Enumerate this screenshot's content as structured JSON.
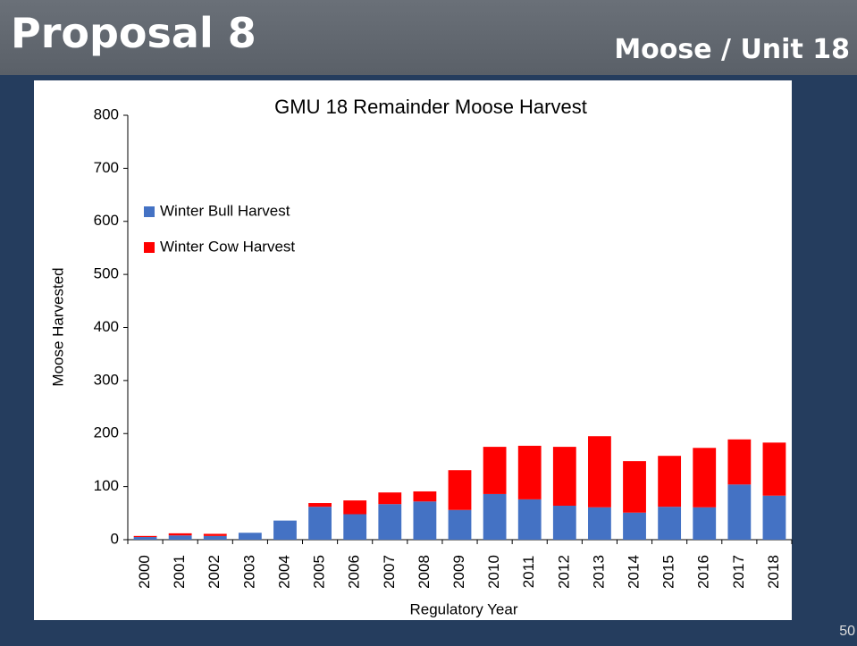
{
  "slide": {
    "title": "Proposal 8",
    "subtitle": "Moose / Unit 18",
    "page_number": "50"
  },
  "chart_data": {
    "type": "stacked_bar",
    "title": "GMU 18 Remainder Moose Harvest",
    "x_label": "Regulatory Year",
    "y_label": "Moose Harvested",
    "categories": [
      "2000",
      "2001",
      "2002",
      "2003",
      "2004",
      "2005",
      "2006",
      "2007",
      "2008",
      "2009",
      "2010",
      "2011",
      "2012",
      "2013",
      "2014",
      "2015",
      "2016",
      "2017",
      "2018"
    ],
    "series": [
      {
        "name": "Winter Bull Harvest",
        "color": "#4472c4",
        "values": [
          5,
          8,
          7,
          13,
          36,
          62,
          48,
          67,
          72,
          56,
          86,
          76,
          64,
          61,
          51,
          62,
          61,
          104,
          83
        ]
      },
      {
        "name": "Winter Cow Harvest",
        "color": "#ff0000",
        "values": [
          2,
          4,
          4,
          0,
          0,
          7,
          26,
          22,
          19,
          75,
          89,
          101,
          111,
          134,
          97,
          96,
          112,
          85,
          100
        ]
      }
    ],
    "ylim": [
      0,
      800
    ],
    "yticks": [
      0,
      100,
      200,
      300,
      400,
      500,
      600,
      700,
      800
    ],
    "grid": false,
    "legend": "upper left"
  }
}
